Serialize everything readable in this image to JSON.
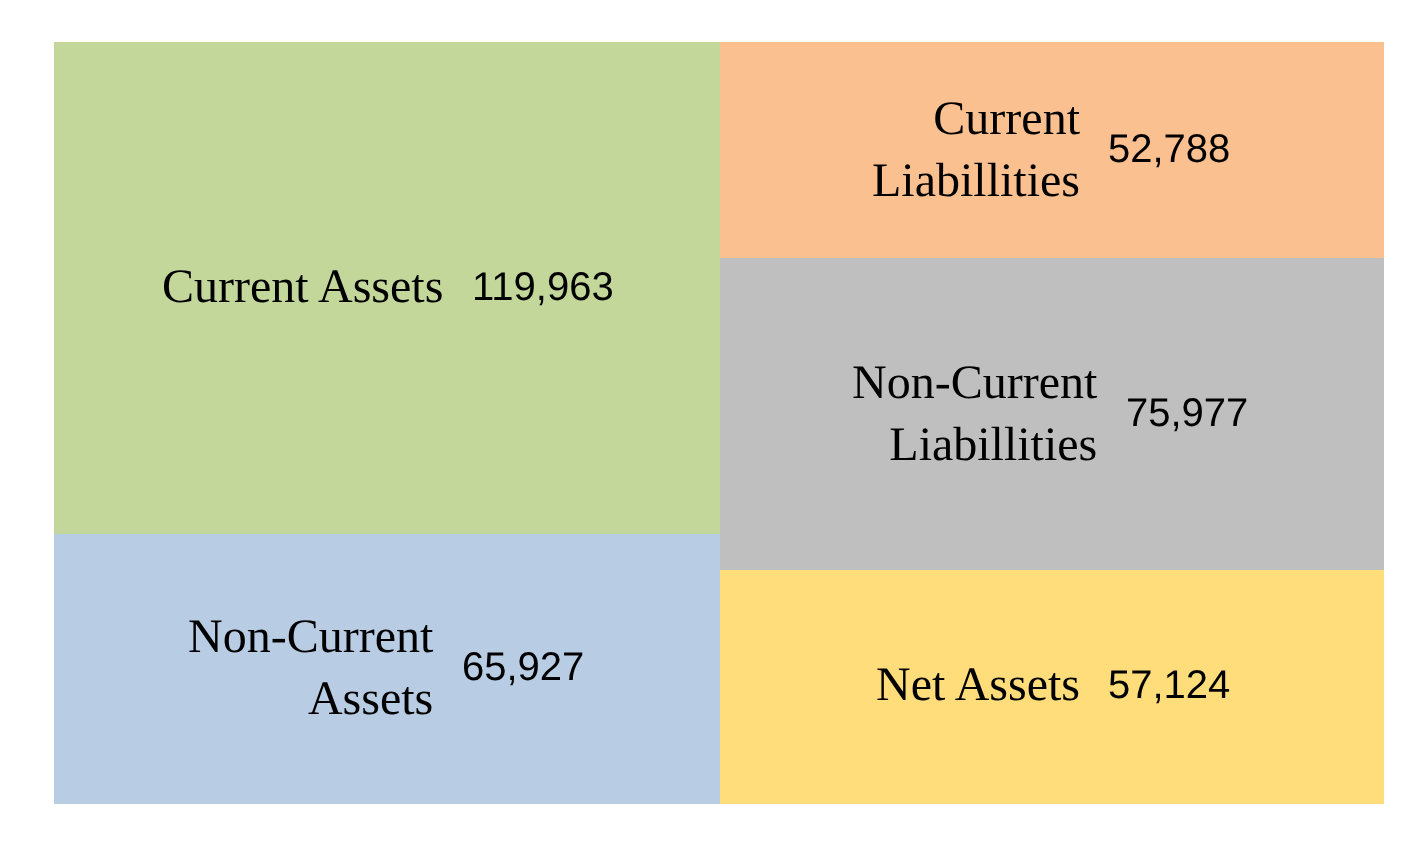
{
  "chart_data": {
    "type": "bar",
    "stacked": true,
    "categories": [
      null,
      null
    ],
    "tick_labels": false,
    "series": [
      {
        "name": "Non-Current Assets",
        "color": "#b8cce4",
        "values": [
          65927,
          null
        ],
        "value_labels": [
          "65,927",
          null
        ]
      },
      {
        "name": "Current Assets",
        "color": "#c4d79b",
        "values": [
          119963,
          null
        ],
        "value_labels": [
          "119,963",
          null
        ]
      },
      {
        "name": "Net Assets",
        "color": "#ffdd7a",
        "values": [
          null,
          57124
        ],
        "value_labels": [
          null,
          "57,124"
        ]
      },
      {
        "name": "Non-Current Liabillities",
        "color": "#bfbfbf",
        "values": [
          null,
          75977
        ],
        "value_labels": [
          null,
          "75,977"
        ]
      },
      {
        "name": "Current Liabillities",
        "color": "#fac090",
        "values": [
          null,
          52788
        ],
        "value_labels": [
          null,
          "52,788"
        ]
      }
    ]
  }
}
